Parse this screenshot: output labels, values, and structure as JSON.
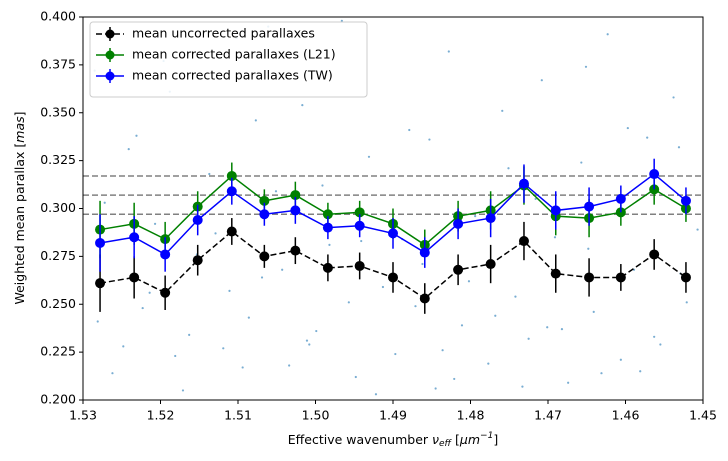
{
  "chart_data": {
    "type": "errorbar",
    "xlabel": [
      "Effective wavenumber ",
      "ν",
      "eff",
      " [",
      "μm",
      "−1",
      "]"
    ],
    "ylabel": [
      "Weighted mean parallax [",
      "mas",
      "]"
    ],
    "xlim": [
      1.53,
      1.45
    ],
    "xticks": [
      1.53,
      1.52,
      1.51,
      {
        "value": 1.5,
        "label": "1.50"
      },
      1.49,
      1.48,
      1.47,
      1.46,
      1.45
    ],
    "ylim": [
      0.2,
      0.4
    ],
    "yticks": [
      {
        "value": 0.2,
        "label": "0.200"
      },
      0.225,
      {
        "value": 0.25,
        "label": "0.250"
      },
      0.275,
      {
        "value": 0.3,
        "label": "0.300"
      },
      0.325,
      {
        "value": 0.35,
        "label": "0.350"
      },
      0.375,
      {
        "value": 0.4,
        "label": "0.400"
      }
    ],
    "legend": "upper left",
    "x": [
      1.5278,
      1.5234,
      1.5194,
      1.5152,
      1.5108,
      1.5066,
      1.5026,
      1.4984,
      1.4943,
      1.49,
      1.4859,
      1.4816,
      1.4774,
      1.4731,
      1.469,
      1.4647,
      1.4606,
      1.4563,
      1.4522
    ],
    "series": [
      {
        "name": "mean uncorrected parallaxes",
        "color": "#000000",
        "linestyle": "dashed",
        "values": [
          0.261,
          0.264,
          0.256,
          0.273,
          0.288,
          0.275,
          0.278,
          0.269,
          0.27,
          0.264,
          0.253,
          0.268,
          0.271,
          0.283,
          0.266,
          0.264,
          0.264,
          0.276,
          0.264
        ],
        "errors": [
          0.015,
          0.011,
          0.009,
          0.008,
          0.007,
          0.006,
          0.007,
          0.007,
          0.007,
          0.008,
          0.008,
          0.008,
          0.01,
          0.01,
          0.01,
          0.01,
          0.007,
          0.008,
          0.008
        ]
      },
      {
        "name": "mean corrected parallaxes (L21)",
        "color": "#008000",
        "linestyle": "solid",
        "values": [
          0.289,
          0.292,
          0.284,
          0.301,
          0.317,
          0.304,
          0.307,
          0.297,
          0.298,
          0.292,
          0.281,
          0.296,
          0.299,
          0.312,
          0.296,
          0.295,
          0.298,
          0.31,
          0.3
        ],
        "errors": [
          0.015,
          0.011,
          0.009,
          0.008,
          0.007,
          0.006,
          0.007,
          0.006,
          0.006,
          0.008,
          0.008,
          0.008,
          0.01,
          0.01,
          0.01,
          0.01,
          0.007,
          0.008,
          0.007
        ]
      },
      {
        "name": "mean corrected parallaxes (TW)",
        "color": "#0000ff",
        "linestyle": "solid",
        "values": [
          0.282,
          0.285,
          0.276,
          0.294,
          0.309,
          0.297,
          0.299,
          0.29,
          0.291,
          0.287,
          0.277,
          0.292,
          0.295,
          0.313,
          0.299,
          0.301,
          0.305,
          0.318,
          0.304
        ],
        "errors": [
          0.015,
          0.011,
          0.009,
          0.008,
          0.007,
          0.006,
          0.007,
          0.006,
          0.006,
          0.008,
          0.008,
          0.008,
          0.01,
          0.01,
          0.01,
          0.01,
          0.007,
          0.008,
          0.007
        ]
      }
    ],
    "hlines": {
      "color": "#808080",
      "values": [
        0.317,
        0.307,
        0.297
      ]
    },
    "background": {
      "color": "#1f77b4",
      "x": [
        1.5285,
        1.5262,
        1.5241,
        1.5223,
        1.5207,
        1.5188,
        1.5171,
        1.5153,
        1.5137,
        1.5119,
        1.5102,
        1.5086,
        1.5069,
        1.5051,
        1.5034,
        1.5017,
        1.4999,
        1.4982,
        1.4966,
        1.4948,
        1.4931,
        1.4913,
        1.4897,
        1.4879,
        1.4862,
        1.4845,
        1.4828,
        1.4811,
        1.4794,
        1.4777,
        1.4759,
        1.4742,
        1.4725,
        1.4708,
        1.4691,
        1.4674,
        1.4657,
        1.4641,
        1.4623,
        1.4606,
        1.4589,
        1.4572,
        1.4555,
        1.4538,
        1.4521,
        1.4507,
        1.5272,
        1.5248,
        1.5214,
        1.5196,
        1.5163,
        1.5129,
        1.5094,
        1.5077,
        1.5043,
        1.5008,
        1.4991,
        1.4957,
        1.4922,
        1.4888,
        1.4853,
        1.4836,
        1.4802,
        1.4768,
        1.4733,
        1.4716,
        1.4682,
        1.4648,
        1.4631,
        1.4597,
        1.4563,
        1.4529,
        1.5281,
        1.5231,
        1.5181,
        1.5111,
        1.5061,
        1.5011,
        1.4941,
        1.4871,
        1.4821,
        1.4751,
        1.4701,
        1.4651,
        1.4581,
        1.4531
      ],
      "y": [
        0.372,
        0.214,
        0.331,
        0.248,
        0.292,
        0.361,
        0.205,
        0.276,
        0.318,
        0.227,
        0.389,
        0.243,
        0.264,
        0.309,
        0.218,
        0.354,
        0.236,
        0.281,
        0.398,
        0.212,
        0.327,
        0.259,
        0.224,
        0.341,
        0.271,
        0.206,
        0.382,
        0.239,
        0.296,
        0.219,
        0.351,
        0.254,
        0.232,
        0.367,
        0.285,
        0.209,
        0.324,
        0.246,
        0.391,
        0.221,
        0.268,
        0.337,
        0.229,
        0.358,
        0.251,
        0.289,
        0.303,
        0.228,
        0.256,
        0.377,
        0.234,
        0.287,
        0.217,
        0.346,
        0.268,
        0.229,
        0.312,
        0.251,
        0.203,
        0.284,
        0.336,
        0.226,
        0.262,
        0.244,
        0.207,
        0.305,
        0.237,
        0.279,
        0.214,
        0.342,
        0.233,
        0.266,
        0.241,
        0.338,
        0.223,
        0.257,
        0.395,
        0.231,
        0.283,
        0.249,
        0.211,
        0.321,
        0.238,
        0.374,
        0.215,
        0.332
      ]
    }
  }
}
